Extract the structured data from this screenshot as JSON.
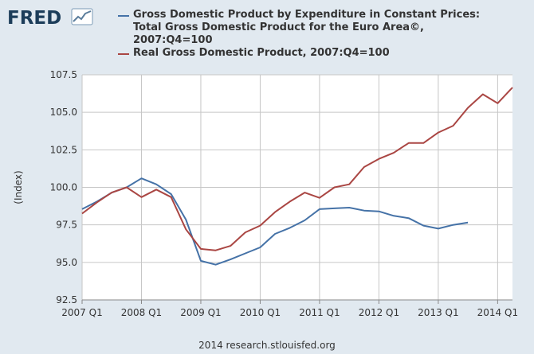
{
  "logo": {
    "text": "FRED"
  },
  "footer": {
    "text": "2014 research.stlouisfed.org"
  },
  "colors": {
    "background": "#e1e9f0",
    "plot_background": "#ffffff",
    "euro_series": "#4572a7",
    "us_series": "#aa4643"
  },
  "chart_data": {
    "type": "line",
    "title": "",
    "xlabel": "",
    "ylabel": "(Index)",
    "ylim": [
      92.5,
      107.5
    ],
    "yticks": [
      "92.5",
      "95.0",
      "97.5",
      "100.0",
      "102.5",
      "105.0",
      "107.5"
    ],
    "xlim": [
      "2007 Q1",
      "2014 Q2"
    ],
    "xticks": [
      "2007 Q1",
      "2008 Q1",
      "2009 Q1",
      "2010 Q1",
      "2011 Q1",
      "2012 Q1",
      "2013 Q1",
      "2014 Q1"
    ],
    "grid": true,
    "legend_position": "top",
    "series": [
      {
        "name": "Gross Domestic Product by Expenditure in Constant Prices:\nTotal Gross Domestic Product for the Euro Area©,\n2007:Q4=100",
        "color": "#4572a7",
        "x": [
          "2007 Q1",
          "2007 Q2",
          "2007 Q3",
          "2007 Q4",
          "2008 Q1",
          "2008 Q2",
          "2008 Q3",
          "2008 Q4",
          "2009 Q1",
          "2009 Q2",
          "2009 Q3",
          "2009 Q4",
          "2010 Q1",
          "2010 Q2",
          "2010 Q3",
          "2010 Q4",
          "2011 Q1",
          "2011 Q2",
          "2011 Q3",
          "2011 Q4",
          "2012 Q1",
          "2012 Q2",
          "2012 Q3",
          "2012 Q4",
          "2013 Q1",
          "2013 Q2",
          "2013 Q3"
        ],
        "values": [
          98.55,
          99.05,
          99.65,
          100.0,
          100.6,
          100.2,
          99.55,
          97.85,
          95.1,
          94.85,
          95.2,
          95.6,
          96.0,
          96.9,
          97.3,
          97.8,
          98.55,
          98.6,
          98.65,
          98.45,
          98.4,
          98.1,
          97.95,
          97.45,
          97.25,
          97.5,
          97.65
        ]
      },
      {
        "name": "Real Gross Domestic Product, 2007:Q4=100",
        "color": "#aa4643",
        "x": [
          "2007 Q1",
          "2007 Q2",
          "2007 Q3",
          "2007 Q4",
          "2008 Q1",
          "2008 Q2",
          "2008 Q3",
          "2008 Q4",
          "2009 Q1",
          "2009 Q2",
          "2009 Q3",
          "2009 Q4",
          "2010 Q1",
          "2010 Q2",
          "2010 Q3",
          "2010 Q4",
          "2011 Q1",
          "2011 Q2",
          "2011 Q3",
          "2011 Q4",
          "2012 Q1",
          "2012 Q2",
          "2012 Q3",
          "2012 Q4",
          "2013 Q1",
          "2013 Q2",
          "2013 Q3",
          "2013 Q4",
          "2014 Q1",
          "2014 Q2"
        ],
        "values": [
          98.25,
          99.0,
          99.65,
          100.0,
          99.35,
          99.85,
          99.35,
          97.2,
          95.9,
          95.8,
          96.1,
          97.0,
          97.45,
          98.35,
          99.05,
          99.65,
          99.3,
          100.0,
          100.2,
          101.35,
          101.9,
          102.3,
          102.95,
          102.95,
          103.65,
          104.1,
          105.3,
          106.2,
          105.6,
          106.65
        ]
      }
    ]
  }
}
